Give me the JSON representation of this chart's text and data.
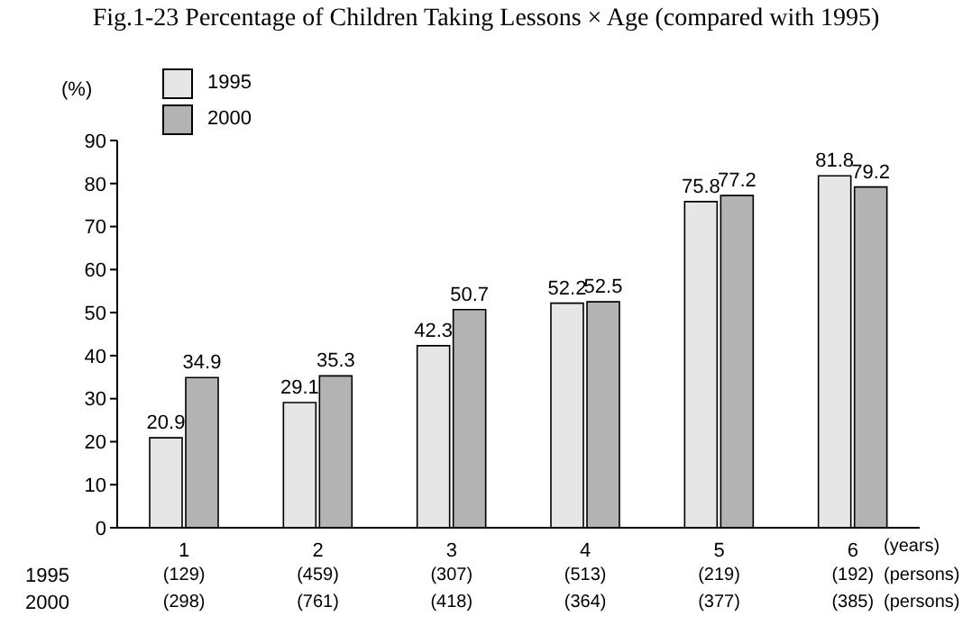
{
  "chart_data": {
    "type": "bar",
    "title": "Fig.1-23 Percentage of Children Taking Lessons × Age (compared with 1995)",
    "xlabel": "(years)",
    "ylabel": "(%)",
    "categories": [
      "1",
      "2",
      "3",
      "4",
      "5",
      "6"
    ],
    "series": [
      {
        "name": "1995",
        "color": "#e6e6e6",
        "values": [
          20.9,
          29.1,
          42.3,
          52.2,
          75.8,
          81.8
        ]
      },
      {
        "name": "2000",
        "color": "#b3b3b3",
        "values": [
          34.9,
          35.3,
          50.7,
          52.5,
          77.2,
          79.2
        ]
      }
    ],
    "ylim": [
      0,
      90
    ],
    "yticks": [
      0,
      10,
      20,
      30,
      40,
      50,
      60,
      70,
      80,
      90
    ],
    "grid": false,
    "legend": "top left",
    "data_labels": true,
    "annotations": [
      "1995",
      "(129)",
      "(459)",
      "(307)",
      "(513)",
      "(219)",
      "(192)",
      "(persons)",
      "2000",
      "(298)",
      "(761)",
      "(418)",
      "(364)",
      "(377)",
      "(385)",
      "(persons)"
    ]
  }
}
